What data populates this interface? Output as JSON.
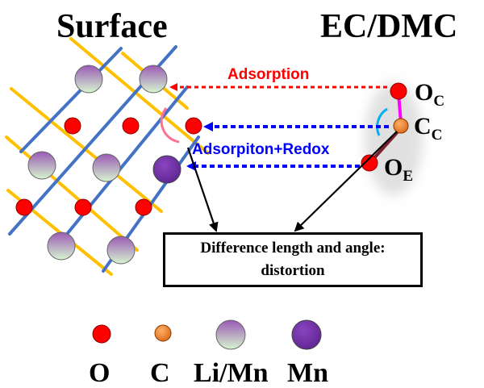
{
  "titles": {
    "surface": "Surface",
    "solvent": "EC/DMC"
  },
  "arrows": {
    "adsorption": "Adsorption",
    "adsorption_redox": "Adsorpiton+Redox"
  },
  "atoms": {
    "oc": {
      "main": "O",
      "sub": "C"
    },
    "cc": {
      "main": "C",
      "sub": "C"
    },
    "oe": {
      "main": "O",
      "sub": "E"
    }
  },
  "box": {
    "line1": "Difference length and angle:",
    "line2": "distortion"
  },
  "legend": [
    {
      "name": "o",
      "label": "O"
    },
    {
      "name": "c",
      "label": "C"
    },
    {
      "name": "li-mn",
      "label": "Li/Mn"
    },
    {
      "name": "mn",
      "label": "Mn"
    }
  ],
  "colors": {
    "grid_blue": "#4472c4",
    "grid_yellow": "#ffc000",
    "oxygen": "#ff0000",
    "carbon": "#f4892a",
    "li_mn_top": "#9b59b6",
    "li_mn_bottom": "#d6f5cf",
    "mn": "#7030a0",
    "arrow_red": "#ff0000",
    "arrow_blue": "#0000ff",
    "bond_pink": "#ff00ff",
    "bond_dark": "#7a2230",
    "angle_pink": "#ff6f91",
    "angle_cyan": "#00b0f0"
  }
}
